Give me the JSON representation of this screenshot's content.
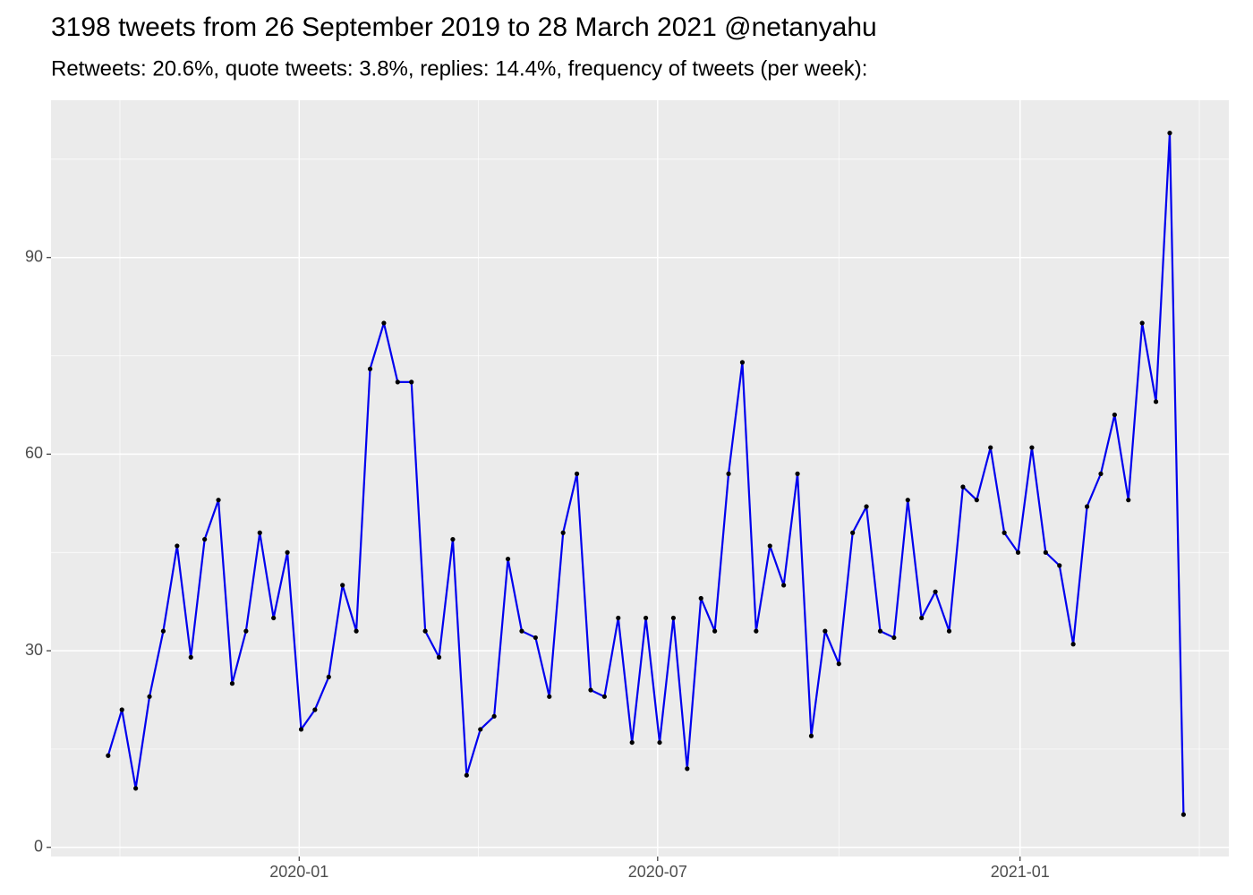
{
  "chart_data": {
    "type": "line",
    "title": "3198 tweets from 26 September 2019 to 28 March 2021 @netanyahu",
    "subtitle": "Retweets: 20.6%, quote tweets: 3.8%, replies: 14.4%, frequency of tweets (per week):",
    "x": [
      "2019-09-26",
      "2019-10-03",
      "2019-10-10",
      "2019-10-17",
      "2019-10-24",
      "2019-10-31",
      "2019-11-07",
      "2019-11-14",
      "2019-11-21",
      "2019-11-28",
      "2019-12-05",
      "2019-12-12",
      "2019-12-19",
      "2019-12-26",
      "2020-01-02",
      "2020-01-09",
      "2020-01-16",
      "2020-01-23",
      "2020-01-30",
      "2020-02-06",
      "2020-02-13",
      "2020-02-20",
      "2020-02-27",
      "2020-03-05",
      "2020-03-12",
      "2020-03-19",
      "2020-03-26",
      "2020-04-02",
      "2020-04-09",
      "2020-04-16",
      "2020-04-23",
      "2020-04-30",
      "2020-05-07",
      "2020-05-14",
      "2020-05-21",
      "2020-05-28",
      "2020-06-04",
      "2020-06-11",
      "2020-06-18",
      "2020-06-25",
      "2020-07-02",
      "2020-07-09",
      "2020-07-16",
      "2020-07-23",
      "2020-07-30",
      "2020-08-06",
      "2020-08-13",
      "2020-08-20",
      "2020-08-27",
      "2020-09-03",
      "2020-09-10",
      "2020-09-17",
      "2020-09-24",
      "2020-10-01",
      "2020-10-08",
      "2020-10-15",
      "2020-10-22",
      "2020-10-29",
      "2020-11-05",
      "2020-11-12",
      "2020-11-19",
      "2020-11-26",
      "2020-12-03",
      "2020-12-10",
      "2020-12-17",
      "2020-12-24",
      "2020-12-31",
      "2021-01-07",
      "2021-01-14",
      "2021-01-21",
      "2021-01-28",
      "2021-02-04",
      "2021-02-11",
      "2021-02-18",
      "2021-02-25",
      "2021-03-04",
      "2021-03-11",
      "2021-03-18",
      "2021-03-25"
    ],
    "values": [
      14,
      21,
      9,
      23,
      33,
      46,
      29,
      47,
      53,
      25,
      33,
      48,
      35,
      45,
      18,
      21,
      26,
      40,
      33,
      73,
      80,
      71,
      71,
      33,
      29,
      47,
      11,
      18,
      20,
      44,
      33,
      32,
      23,
      48,
      57,
      24,
      23,
      35,
      16,
      35,
      16,
      35,
      12,
      38,
      33,
      57,
      74,
      33,
      46,
      40,
      57,
      17,
      33,
      28,
      48,
      52,
      33,
      32,
      53,
      35,
      39,
      33,
      55,
      53,
      61,
      48,
      45,
      61,
      45,
      43,
      31,
      52,
      57,
      66,
      53,
      80,
      68,
      109,
      5
    ],
    "color": "#0000ee",
    "point_color": "#000000",
    "xlim": [
      "2019-08-28",
      "2021-04-17"
    ],
    "xticks": [
      {
        "value": "2020-01-01",
        "label": "2020-01"
      },
      {
        "value": "2020-07-01",
        "label": "2020-07"
      },
      {
        "value": "2021-01-01",
        "label": "2021-01"
      }
    ],
    "ylim": [
      -1.4,
      114
    ],
    "yticks": [
      0,
      30,
      60,
      90
    ],
    "grid": true
  }
}
